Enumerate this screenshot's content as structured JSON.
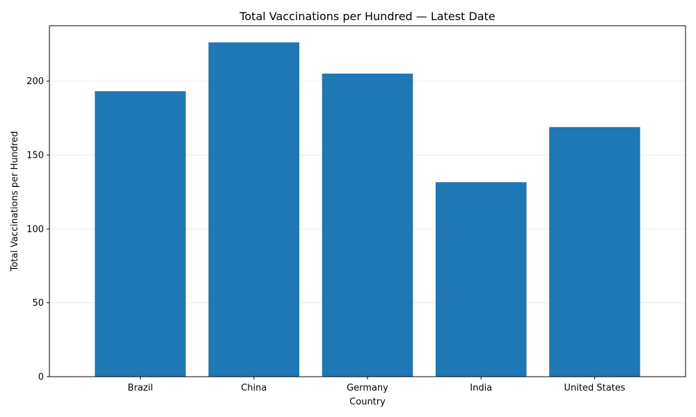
{
  "chart_data": {
    "type": "bar",
    "title": "Total Vaccinations per Hundred — Latest Date",
    "xlabel": "Country",
    "ylabel": "Total Vaccinations per Hundred",
    "categories": [
      "Brazil",
      "China",
      "Germany",
      "India",
      "United States"
    ],
    "values": [
      193.2,
      226.2,
      205.1,
      131.6,
      168.9
    ],
    "ylim": [
      0,
      237.5
    ],
    "yticks": [
      0,
      50,
      100,
      150,
      200
    ],
    "grid": "y",
    "bar_color": "#1f77b4"
  }
}
